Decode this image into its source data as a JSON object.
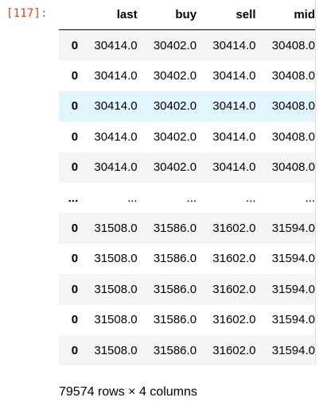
{
  "cell": {
    "prompt": "[117]:"
  },
  "dataframe": {
    "index_header": "",
    "columns": [
      "last",
      "buy",
      "sell",
      "mid"
    ],
    "rows": [
      {
        "index": "0",
        "values": [
          "30414.0",
          "30402.0",
          "30414.0",
          "30408.0"
        ],
        "highlighted": false
      },
      {
        "index": "0",
        "values": [
          "30414.0",
          "30402.0",
          "30414.0",
          "30408.0"
        ],
        "highlighted": false
      },
      {
        "index": "0",
        "values": [
          "30414.0",
          "30402.0",
          "30414.0",
          "30408.0"
        ],
        "highlighted": true
      },
      {
        "index": "0",
        "values": [
          "30414.0",
          "30402.0",
          "30414.0",
          "30408.0"
        ],
        "highlighted": false
      },
      {
        "index": "0",
        "values": [
          "30414.0",
          "30402.0",
          "30414.0",
          "30408.0"
        ],
        "highlighted": false
      },
      {
        "index": "...",
        "values": [
          "...",
          "...",
          "...",
          "..."
        ],
        "highlighted": false
      },
      {
        "index": "0",
        "values": [
          "31508.0",
          "31586.0",
          "31602.0",
          "31594.0"
        ],
        "highlighted": false
      },
      {
        "index": "0",
        "values": [
          "31508.0",
          "31586.0",
          "31602.0",
          "31594.0"
        ],
        "highlighted": false
      },
      {
        "index": "0",
        "values": [
          "31508.0",
          "31586.0",
          "31602.0",
          "31594.0"
        ],
        "highlighted": false
      },
      {
        "index": "0",
        "values": [
          "31508.0",
          "31586.0",
          "31602.0",
          "31594.0"
        ],
        "highlighted": false
      },
      {
        "index": "0",
        "values": [
          "31508.0",
          "31586.0",
          "31602.0",
          "31594.0"
        ],
        "highlighted": false
      }
    ],
    "shape_text": "79574 rows × 4 columns"
  },
  "colors": {
    "prompt": "#d84315",
    "row_stripe": "#f5f5f5",
    "row_hover": "#e1f5fe"
  }
}
